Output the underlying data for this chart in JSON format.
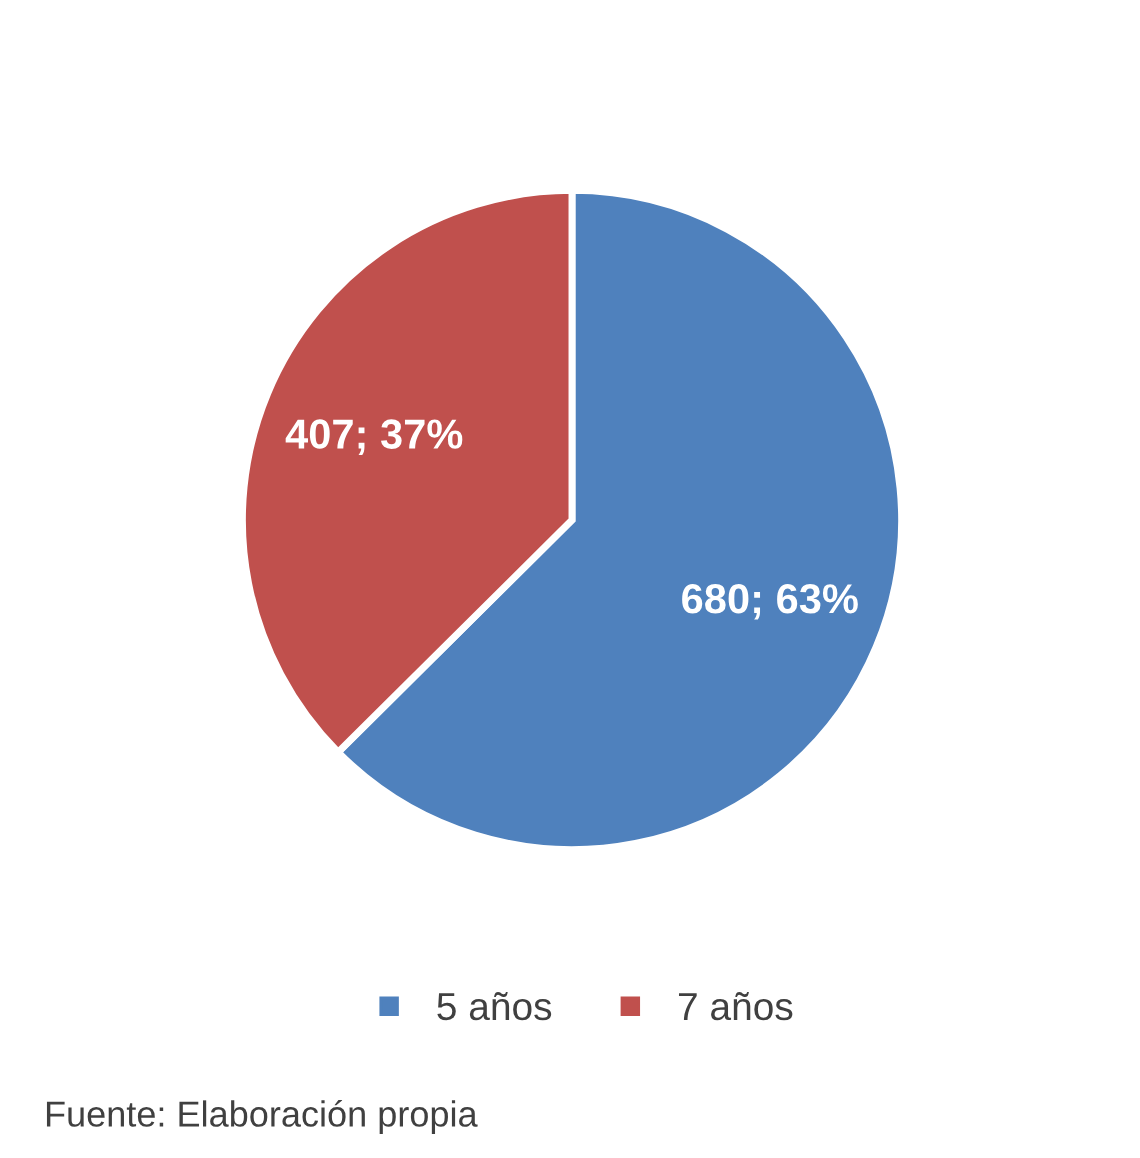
{
  "chart_data": {
    "type": "pie",
    "categories": [
      "5 años",
      "7 años"
    ],
    "values": [
      680,
      407
    ],
    "colors": [
      "#4f81bd",
      "#c0504d"
    ],
    "value_labels": [
      "680; 63%",
      "407; 37%"
    ],
    "legend": "bottom",
    "annotations": [
      "Fuente: Elaboración propia"
    ]
  }
}
